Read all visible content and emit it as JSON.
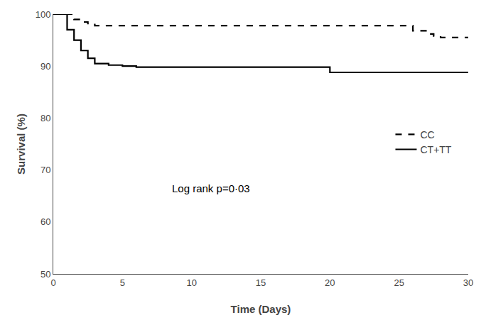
{
  "chart_data": {
    "type": "step",
    "xlabel": "Time (Days)",
    "ylabel": "Survival (%)",
    "series": [
      {
        "name": "CC",
        "color": "#000000",
        "line_style": "dashed",
        "x": [
          0,
          1,
          1.5,
          2,
          2.5,
          3,
          25,
          26,
          27,
          27.5,
          28,
          29,
          30
        ],
        "values": [
          100,
          100,
          99.0,
          98.5,
          98.2,
          97.8,
          97.8,
          96.8,
          96.2,
          95.8,
          95.5,
          95.5,
          95.5
        ]
      },
      {
        "name": "CT+TT",
        "color": "#000000",
        "line_style": "solid",
        "x": [
          0,
          1,
          1.5,
          2,
          2.5,
          3,
          4,
          5,
          6,
          19,
          20,
          30
        ],
        "values": [
          100,
          97,
          95,
          93,
          91.5,
          90.5,
          90.2,
          90.0,
          89.8,
          89.8,
          88.8,
          88.8
        ]
      }
    ],
    "annotations": [
      {
        "text": "Log rank p=0·03",
        "x": 8.5,
        "y": 65,
        "color": "#000000"
      }
    ],
    "xlim": [
      0,
      30
    ],
    "ylim": [
      50,
      100
    ],
    "xticks": [
      0,
      5,
      10,
      15,
      20,
      25,
      30
    ],
    "yticks": [
      50,
      60,
      70,
      80,
      90,
      100
    ],
    "grid": false,
    "legend": "right"
  }
}
